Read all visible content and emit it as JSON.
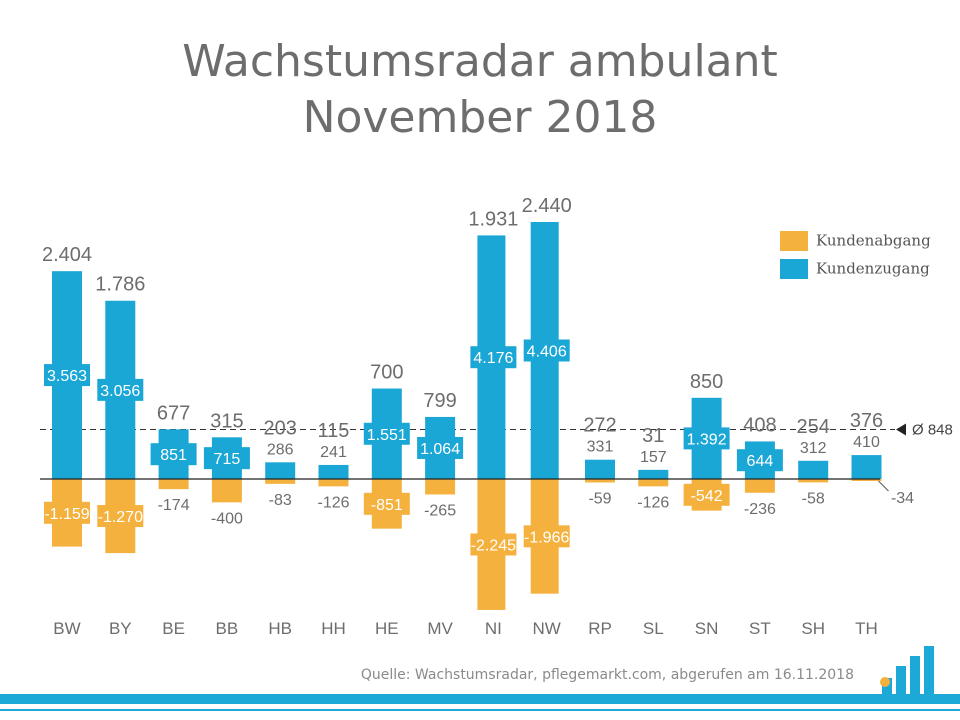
{
  "title_line1": "Wachstumsradar ambulant",
  "title_line2": "November 2018",
  "source": "Quelle: Wachstumsradar, pflegemarkt.com, abgerufen am 16.11.2018",
  "average_label": "Ø 848",
  "colors": {
    "zugang": "#1aa7d6",
    "abgang": "#f5b13d",
    "text": "#6d6d6d",
    "axis": "#333333"
  },
  "chart_data": {
    "type": "bar",
    "title": "Wachstumsradar ambulant November 2018",
    "categories": [
      "BW",
      "BY",
      "BE",
      "BB",
      "HB",
      "HH",
      "HE",
      "MV",
      "NI",
      "NW",
      "RP",
      "SL",
      "SN",
      "ST",
      "SH",
      "TH"
    ],
    "series": [
      {
        "name": "Kundenabgang",
        "values": [
          -1159,
          -1270,
          -174,
          -400,
          -83,
          -126,
          -851,
          -265,
          -2245,
          -1966,
          -59,
          -126,
          -542,
          -236,
          -58,
          -34
        ],
        "labels": [
          "-1.159",
          "-1.270",
          "-174",
          "-400",
          "-83",
          "-126",
          "-851",
          "-265",
          "-2.245",
          "-1.966",
          "-59",
          "-126",
          "-542",
          "-236",
          "-58",
          "-34"
        ]
      },
      {
        "name": "Kundenzugang",
        "values": [
          3563,
          3056,
          851,
          715,
          286,
          241,
          1551,
          1064,
          4176,
          4406,
          331,
          157,
          1392,
          644,
          312,
          410
        ],
        "labels": [
          "3.563",
          "3.056",
          "851",
          "715",
          "286",
          "241",
          "1.551",
          "1.064",
          "4.176",
          "4.406",
          "331",
          "157",
          "1.392",
          "644",
          "312",
          "410"
        ]
      }
    ],
    "net": [
      2404,
      1786,
      677,
      315,
      203,
      115,
      700,
      799,
      1931,
      2440,
      272,
      31,
      850,
      408,
      254,
      376
    ],
    "net_labels": [
      "2.404",
      "1.786",
      "677",
      "315",
      "203",
      "115",
      "700",
      "799",
      "1.931",
      "2.440",
      "272",
      "31",
      "850",
      "408",
      "254",
      "376"
    ],
    "average": 848,
    "legend": [
      "Kundenabgang",
      "Kundenzugang"
    ],
    "legend_position": "top-right",
    "grid": false
  }
}
